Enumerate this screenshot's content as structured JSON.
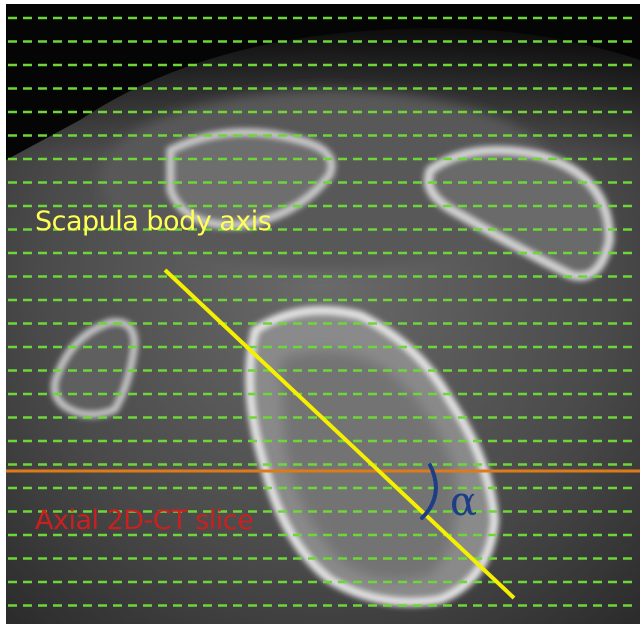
{
  "annotations": {
    "axis_label": "Scapula body axis",
    "slice_label": "Axial 2D-CT slice",
    "angle_symbol": "α"
  },
  "colors": {
    "axis_line": "#f4f000",
    "axis_label": "#ffff55",
    "slice_line": "#e07a18",
    "slice_label": "#cc1f1f",
    "angle": "#1d3e86",
    "grid_dash": "#6fd63a"
  }
}
